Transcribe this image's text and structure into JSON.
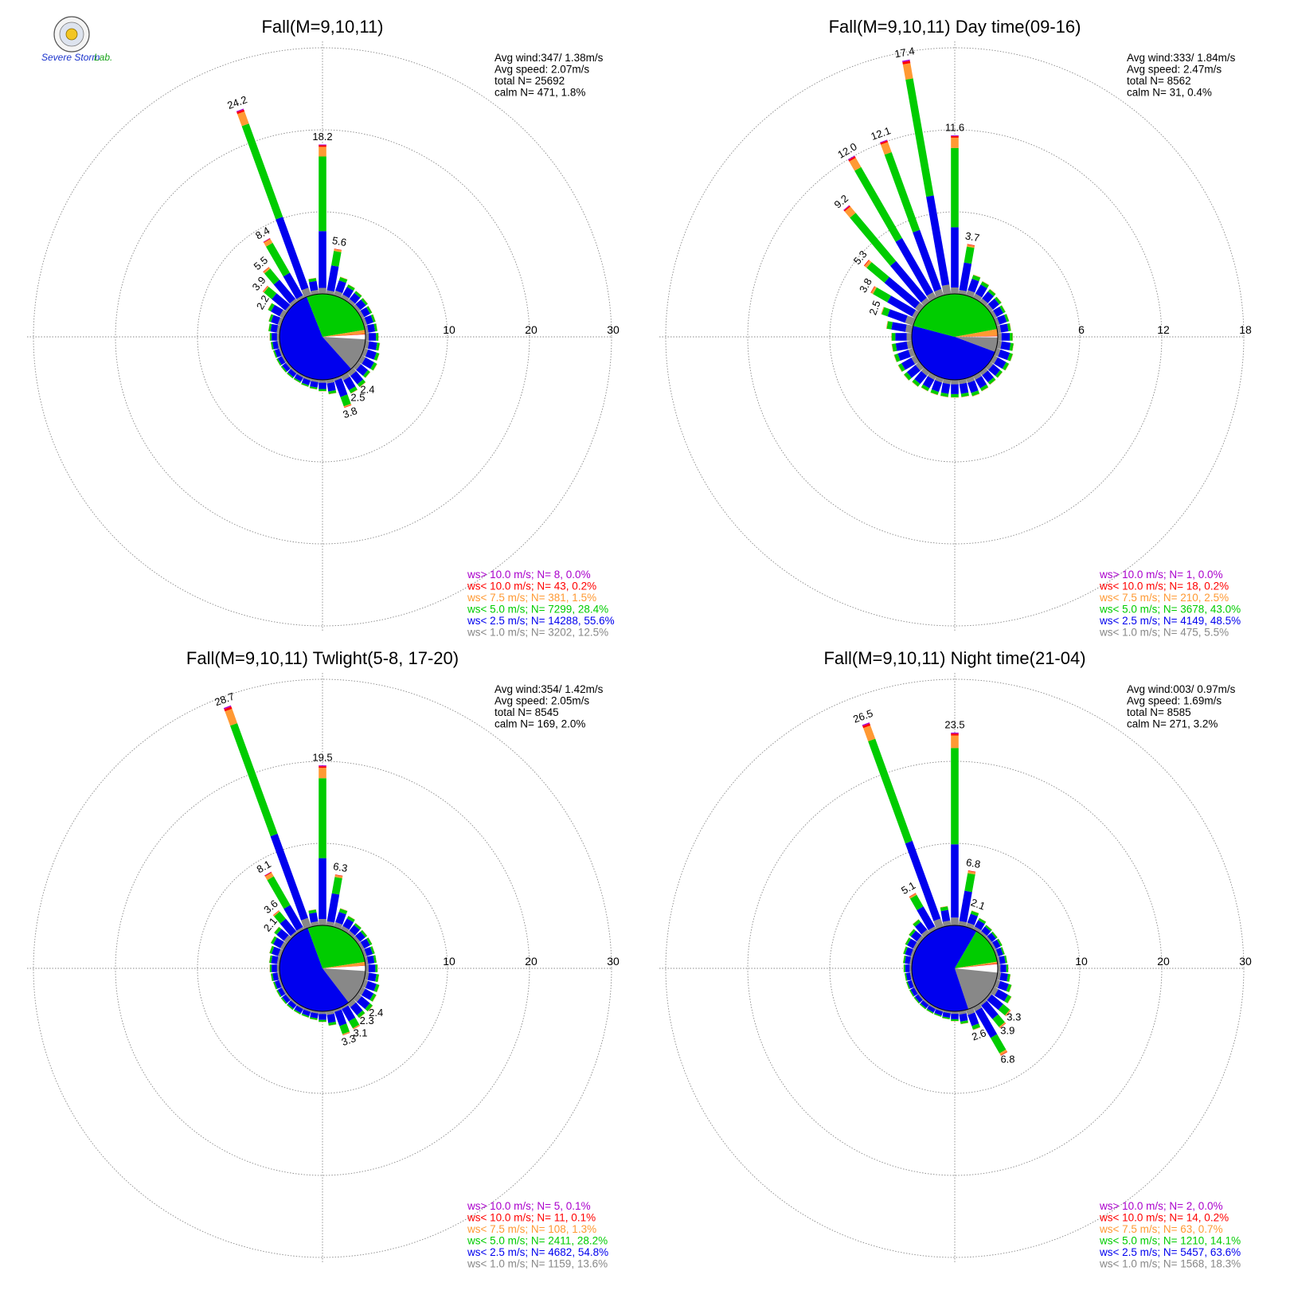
{
  "logo": {
    "text_main": "Severe Storm",
    "text_lab": "Lab."
  },
  "palette": {
    "calm": "#ffffff",
    "lt1": "#888888",
    "lt25": "#0000ee",
    "lt5": "#00cc00",
    "lt75": "#ff9933",
    "lt10": "#ff0000",
    "gt10": "#aa00cc",
    "grid": "#888888"
  },
  "chart_data": [
    {
      "type": "wind-rose",
      "title": "Fall(M=9,10,11)",
      "ring_labels": [
        "10",
        "20",
        "30"
      ],
      "rmax": 30,
      "stats": [
        "Avg wind:347/ 1.38m/s",
        "Avg speed: 2.07m/s",
        "total N=      25692",
        "calm N=    471,   1.8%"
      ],
      "legend": [
        {
          "text": "ws> 10.0 m/s; N=     8,  0.0%",
          "color": "#aa00cc"
        },
        {
          "text": "ws< 10.0 m/s; N=    43,  0.2%",
          "color": "#ff0000"
        },
        {
          "text": "ws<  7.5 m/s; N=   381,  1.5%",
          "color": "#ff9933"
        },
        {
          "text": "ws<  5.0 m/s; N=  7299, 28.4%",
          "color": "#00cc00"
        },
        {
          "text": "ws<  2.5 m/s; N= 14288, 55.6%",
          "color": "#0000ee"
        },
        {
          "text": "ws<  1.0 m/s; N=  3202, 12.5%",
          "color": "#888888"
        }
      ],
      "pie": [
        1.8,
        12.5,
        55.6,
        28.4,
        1.5,
        0.2
      ],
      "directions": [
        {
          "d": 0,
          "v": 18.2,
          "label": "18.2"
        },
        {
          "d": 10,
          "v": 5.6,
          "label": "5.6"
        },
        {
          "d": 20,
          "v": 2.4
        },
        {
          "d": 30,
          "v": 1.9
        },
        {
          "d": 40,
          "v": 1.7
        },
        {
          "d": 50,
          "v": 1.6
        },
        {
          "d": 60,
          "v": 1.5
        },
        {
          "d": 70,
          "v": 1.5
        },
        {
          "d": 80,
          "v": 1.5
        },
        {
          "d": 90,
          "v": 1.6
        },
        {
          "d": 100,
          "v": 1.8
        },
        {
          "d": 110,
          "v": 2.0
        },
        {
          "d": 120,
          "v": 2.2
        },
        {
          "d": 130,
          "v": 2.0
        },
        {
          "d": 140,
          "v": 2.4,
          "label": "2.4"
        },
        {
          "d": 150,
          "v": 2.5,
          "label": "2.5"
        },
        {
          "d": 160,
          "v": 3.8,
          "label": "3.8"
        },
        {
          "d": 170,
          "v": 1.8
        },
        {
          "d": 180,
          "v": 1.4
        },
        {
          "d": 190,
          "v": 1.2
        },
        {
          "d": 200,
          "v": 1.1
        },
        {
          "d": 210,
          "v": 1.0
        },
        {
          "d": 220,
          "v": 1.0
        },
        {
          "d": 230,
          "v": 1.0
        },
        {
          "d": 240,
          "v": 1.0
        },
        {
          "d": 250,
          "v": 1.0
        },
        {
          "d": 260,
          "v": 1.1
        },
        {
          "d": 270,
          "v": 1.2
        },
        {
          "d": 280,
          "v": 1.4
        },
        {
          "d": 290,
          "v": 1.6
        },
        {
          "d": 300,
          "v": 2.2,
          "label": "2.2"
        },
        {
          "d": 310,
          "v": 3.9,
          "label": "3.9"
        },
        {
          "d": 320,
          "v": 5.5,
          "label": "5.5"
        },
        {
          "d": 330,
          "v": 8.4,
          "label": "8.4"
        },
        {
          "d": 340,
          "v": 24.2,
          "label": "24.2"
        },
        {
          "d": 350,
          "v": 2.0
        }
      ]
    },
    {
      "type": "wind-rose",
      "title": "Fall(M=9,10,11) Day time(09-16)",
      "ring_labels": [
        "6",
        "12",
        "18"
      ],
      "rmax": 18,
      "stats": [
        "Avg wind:333/ 1.84m/s",
        "Avg speed: 2.47m/s",
        "total N=       8562",
        "calm N=     31,   0.4%"
      ],
      "legend": [
        {
          "text": "ws> 10.0 m/s; N=     1,  0.0%",
          "color": "#aa00cc"
        },
        {
          "text": "ws< 10.0 m/s; N=    18,  0.2%",
          "color": "#ff0000"
        },
        {
          "text": "ws<  7.5 m/s; N=   210,  2.5%",
          "color": "#ff9933"
        },
        {
          "text": "ws<  5.0 m/s; N=  3678, 43.0%",
          "color": "#00cc00"
        },
        {
          "text": "ws<  2.5 m/s; N=  4149, 48.5%",
          "color": "#0000ee"
        },
        {
          "text": "ws<  1.0 m/s; N=   475,  5.5%",
          "color": "#888888"
        }
      ],
      "pie": [
        0.4,
        5.5,
        48.5,
        43.0,
        2.5,
        0.2
      ],
      "directions": [
        {
          "d": 0,
          "v": 11.6,
          "label": "11.6"
        },
        {
          "d": 10,
          "v": 3.7,
          "label": "3.7"
        },
        {
          "d": 20,
          "v": 1.6
        },
        {
          "d": 30,
          "v": 1.4
        },
        {
          "d": 40,
          "v": 1.2
        },
        {
          "d": 50,
          "v": 1.1
        },
        {
          "d": 60,
          "v": 1.0
        },
        {
          "d": 70,
          "v": 1.0
        },
        {
          "d": 80,
          "v": 1.0
        },
        {
          "d": 90,
          "v": 1.1
        },
        {
          "d": 100,
          "v": 1.2
        },
        {
          "d": 110,
          "v": 1.3
        },
        {
          "d": 120,
          "v": 1.3
        },
        {
          "d": 130,
          "v": 1.2
        },
        {
          "d": 140,
          "v": 1.2
        },
        {
          "d": 150,
          "v": 1.3
        },
        {
          "d": 160,
          "v": 1.4
        },
        {
          "d": 170,
          "v": 1.3
        },
        {
          "d": 180,
          "v": 1.3
        },
        {
          "d": 190,
          "v": 1.3
        },
        {
          "d": 200,
          "v": 1.3
        },
        {
          "d": 210,
          "v": 1.3
        },
        {
          "d": 220,
          "v": 1.4
        },
        {
          "d": 230,
          "v": 1.5
        },
        {
          "d": 240,
          "v": 1.5
        },
        {
          "d": 250,
          "v": 1.5
        },
        {
          "d": 260,
          "v": 1.5
        },
        {
          "d": 270,
          "v": 1.5
        },
        {
          "d": 280,
          "v": 1.9
        },
        {
          "d": 290,
          "v": 2.5,
          "label": "2.5"
        },
        {
          "d": 300,
          "v": 3.8,
          "label": "3.8"
        },
        {
          "d": 310,
          "v": 5.3,
          "label": "5.3"
        },
        {
          "d": 320,
          "v": 9.2,
          "label": "9.2"
        },
        {
          "d": 330,
          "v": 12.0,
          "label": "12.0"
        },
        {
          "d": 340,
          "v": 12.1,
          "label": "12.1"
        },
        {
          "d": 350,
          "v": 17.4,
          "label": "17.4"
        }
      ]
    },
    {
      "type": "wind-rose",
      "title": "Fall(M=9,10,11) Twlight(5-8, 17-20)",
      "ring_labels": [
        "10",
        "20",
        "30"
      ],
      "rmax": 30,
      "stats": [
        "Avg wind:354/ 1.42m/s",
        "Avg speed: 2.05m/s",
        "total N=       8545",
        "calm N=    169,   2.0%"
      ],
      "legend": [
        {
          "text": "ws> 10.0 m/s; N=     5,  0.1%",
          "color": "#aa00cc"
        },
        {
          "text": "ws< 10.0 m/s; N=    11,  0.1%",
          "color": "#ff0000"
        },
        {
          "text": "ws<  7.5 m/s; N=   108,  1.3%",
          "color": "#ff9933"
        },
        {
          "text": "ws<  5.0 m/s; N=  2411, 28.2%",
          "color": "#00cc00"
        },
        {
          "text": "ws<  2.5 m/s; N=  4682, 54.8%",
          "color": "#0000ee"
        },
        {
          "text": "ws<  1.0 m/s; N=  1159, 13.6%",
          "color": "#888888"
        }
      ],
      "pie": [
        2.0,
        13.6,
        54.8,
        28.2,
        1.3,
        0.1
      ],
      "directions": [
        {
          "d": 0,
          "v": 19.5,
          "label": "19.5"
        },
        {
          "d": 10,
          "v": 6.3,
          "label": "6.3"
        },
        {
          "d": 20,
          "v": 2.4
        },
        {
          "d": 30,
          "v": 1.9
        },
        {
          "d": 40,
          "v": 1.6
        },
        {
          "d": 50,
          "v": 1.5
        },
        {
          "d": 60,
          "v": 1.5
        },
        {
          "d": 70,
          "v": 1.4
        },
        {
          "d": 80,
          "v": 1.4
        },
        {
          "d": 90,
          "v": 1.5
        },
        {
          "d": 100,
          "v": 1.7
        },
        {
          "d": 110,
          "v": 2.0
        },
        {
          "d": 120,
          "v": 2.1
        },
        {
          "d": 130,
          "v": 2.4,
          "label": "2.4"
        },
        {
          "d": 140,
          "v": 2.3,
          "label": "2.3"
        },
        {
          "d": 150,
          "v": 3.1,
          "label": "3.1"
        },
        {
          "d": 160,
          "v": 3.3,
          "label": "3.3"
        },
        {
          "d": 170,
          "v": 1.8
        },
        {
          "d": 180,
          "v": 1.3
        },
        {
          "d": 190,
          "v": 1.1
        },
        {
          "d": 200,
          "v": 1.0
        },
        {
          "d": 210,
          "v": 1.0
        },
        {
          "d": 220,
          "v": 1.0
        },
        {
          "d": 230,
          "v": 1.0
        },
        {
          "d": 240,
          "v": 1.0
        },
        {
          "d": 250,
          "v": 1.0
        },
        {
          "d": 260,
          "v": 1.1
        },
        {
          "d": 270,
          "v": 1.2
        },
        {
          "d": 280,
          "v": 1.3
        },
        {
          "d": 290,
          "v": 1.5
        },
        {
          "d": 300,
          "v": 1.8
        },
        {
          "d": 310,
          "v": 2.1,
          "label": "2.1"
        },
        {
          "d": 320,
          "v": 3.6,
          "label": "3.6"
        },
        {
          "d": 330,
          "v": 8.1,
          "label": "8.1"
        },
        {
          "d": 340,
          "v": 28.7,
          "label": "28.7"
        },
        {
          "d": 350,
          "v": 2.0
        }
      ]
    },
    {
      "type": "wind-rose",
      "title": "Fall(M=9,10,11) Night time(21-04)",
      "ring_labels": [
        "10",
        "20",
        "30"
      ],
      "rmax": 30,
      "stats": [
        "Avg wind:003/ 0.97m/s",
        "Avg speed: 1.69m/s",
        "total N=       8585",
        "calm N=    271,   3.2%"
      ],
      "legend": [
        {
          "text": "ws> 10.0 m/s; N=     2,  0.0%",
          "color": "#aa00cc"
        },
        {
          "text": "ws< 10.0 m/s; N=    14,  0.2%",
          "color": "#ff0000"
        },
        {
          "text": "ws<  7.5 m/s; N=    63,  0.7%",
          "color": "#ff9933"
        },
        {
          "text": "ws<  5.0 m/s; N=  1210, 14.1%",
          "color": "#00cc00"
        },
        {
          "text": "ws<  2.5 m/s; N=  5457, 63.6%",
          "color": "#0000ee"
        },
        {
          "text": "ws<  1.0 m/s; N=  1568, 18.3%",
          "color": "#888888"
        }
      ],
      "pie": [
        3.2,
        18.3,
        63.6,
        14.1,
        0.7,
        0.2
      ],
      "directions": [
        {
          "d": 0,
          "v": 23.5,
          "label": "23.5"
        },
        {
          "d": 10,
          "v": 6.8,
          "label": "6.8"
        },
        {
          "d": 20,
          "v": 2.1,
          "label": "2.1"
        },
        {
          "d": 30,
          "v": 1.6
        },
        {
          "d": 40,
          "v": 1.3
        },
        {
          "d": 50,
          "v": 1.2
        },
        {
          "d": 60,
          "v": 1.2
        },
        {
          "d": 70,
          "v": 1.1
        },
        {
          "d": 80,
          "v": 1.2
        },
        {
          "d": 90,
          "v": 1.3
        },
        {
          "d": 100,
          "v": 1.6
        },
        {
          "d": 110,
          "v": 2.0
        },
        {
          "d": 120,
          "v": 2.5
        },
        {
          "d": 130,
          "v": 3.3,
          "label": "3.3"
        },
        {
          "d": 140,
          "v": 3.9,
          "label": "3.9"
        },
        {
          "d": 150,
          "v": 6.8,
          "label": "6.8"
        },
        {
          "d": 160,
          "v": 2.6,
          "label": "2.6"
        },
        {
          "d": 170,
          "v": 1.6
        },
        {
          "d": 180,
          "v": 1.2
        },
        {
          "d": 190,
          "v": 1.0
        },
        {
          "d": 200,
          "v": 0.9
        },
        {
          "d": 210,
          "v": 0.9
        },
        {
          "d": 220,
          "v": 0.9
        },
        {
          "d": 230,
          "v": 0.9
        },
        {
          "d": 240,
          "v": 0.9
        },
        {
          "d": 250,
          "v": 0.9
        },
        {
          "d": 260,
          "v": 0.9
        },
        {
          "d": 270,
          "v": 1.0
        },
        {
          "d": 280,
          "v": 1.1
        },
        {
          "d": 290,
          "v": 1.3
        },
        {
          "d": 300,
          "v": 1.5
        },
        {
          "d": 310,
          "v": 1.7
        },
        {
          "d": 320,
          "v": 2.2
        },
        {
          "d": 330,
          "v": 5.1,
          "label": "5.1"
        },
        {
          "d": 340,
          "v": 26.5,
          "label": "26.5"
        },
        {
          "d": 350,
          "v": 2.4
        }
      ]
    }
  ]
}
